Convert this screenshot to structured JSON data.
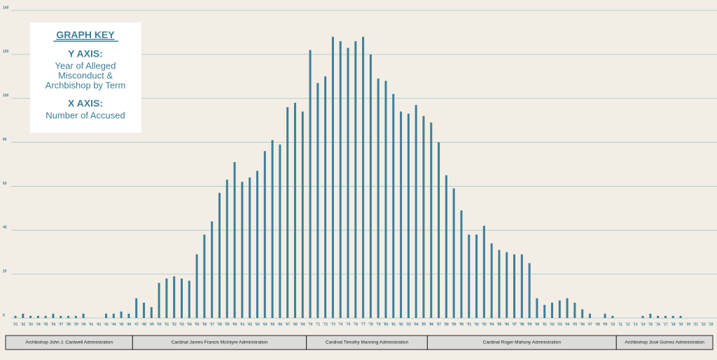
{
  "chart_data": {
    "type": "bar",
    "categories": [
      "'31",
      "'32",
      "'33",
      "'34",
      "'35",
      "'36",
      "'37",
      "'38",
      "'39",
      "'40",
      "'41",
      "'42",
      "'43",
      "'44",
      "'45",
      "'46",
      "'47",
      "'48",
      "'49",
      "'50",
      "'51",
      "'52",
      "'53",
      "'54",
      "'55",
      "'56",
      "'57",
      "'58",
      "'59",
      "'60",
      "'61",
      "'62",
      "'63",
      "'64",
      "'65",
      "'66",
      "'67",
      "'68",
      "'69",
      "'70",
      "'71",
      "'72",
      "'73",
      "'74",
      "'75",
      "'76",
      "'77",
      "'78",
      "'79",
      "'80",
      "'81",
      "'82",
      "'83",
      "'84",
      "'85",
      "'86",
      "'87",
      "'88",
      "'89",
      "'90",
      "'91",
      "'92",
      "'93",
      "'94",
      "'95",
      "'96",
      "'97",
      "'98",
      "'99",
      "'00",
      "'01",
      "'02",
      "'03",
      "'04",
      "'05",
      "'06",
      "'07",
      "'08",
      "'09",
      "'10",
      "'11",
      "'12",
      "'13",
      "'14",
      "'15",
      "'16",
      "'17",
      "'18",
      "'19",
      "'20",
      "'21",
      "'22",
      "'23"
    ],
    "values": [
      1,
      2,
      1,
      1,
      1,
      2,
      1,
      1,
      1,
      2,
      0,
      0,
      2,
      2,
      3,
      2,
      9,
      7,
      5,
      16,
      18,
      19,
      18,
      17,
      29,
      38,
      44,
      57,
      63,
      71,
      62,
      64,
      67,
      76,
      81,
      79,
      96,
      98,
      94,
      122,
      107,
      110,
      128,
      126,
      123,
      126,
      128,
      120,
      109,
      108,
      102,
      94,
      93,
      97,
      92,
      89,
      80,
      65,
      59,
      49,
      38,
      38,
      42,
      34,
      31,
      30,
      29,
      29,
      25,
      9,
      6,
      7,
      8,
      9,
      7,
      4,
      2,
      0,
      2,
      1,
      0,
      0,
      0,
      1,
      2,
      1,
      1,
      1,
      1,
      0,
      0,
      0,
      0
    ],
    "color": "#3d7f99",
    "ylim": [
      0,
      140
    ],
    "yticks": [
      0,
      20,
      40,
      60,
      80,
      100,
      120,
      140
    ],
    "grid": true,
    "key": {
      "title": "GRAPH KEY",
      "y_heading": "Y AXIS:",
      "y_lines": [
        "Year of Alleged",
        "Misconduct &",
        "Archbishop by Term"
      ],
      "x_heading": "X AXIS:",
      "x_lines": [
        "Number of Accused"
      ]
    },
    "administrations": [
      "Archbishop John J. Cantwell Administration",
      "Cardinal James Francis McIntyre Administration",
      "Cardinal Timothy Manning Administration",
      "Cardinal Roger Mahony Administration",
      "Archbishop José Gomez Administration"
    ]
  }
}
